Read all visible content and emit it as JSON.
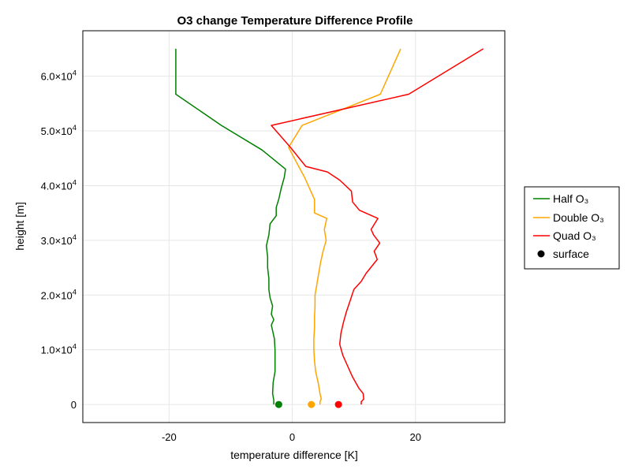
{
  "chart_data": {
    "type": "line",
    "title": "O3 change Temperature Difference Profile",
    "xlabel": "temperature difference [K]",
    "ylabel": "height [m]",
    "xlim": [
      -34,
      34.5
    ],
    "ylim": [
      -3300,
      68300
    ],
    "x_ticks": [
      -20,
      0,
      20
    ],
    "x_tick_labels": [
      "-20",
      "0",
      "20"
    ],
    "y_ticks": [
      0,
      10000,
      20000,
      30000,
      40000,
      50000,
      60000
    ],
    "y_tick_labels": [
      {
        "mantissa": "0",
        "exponent": ""
      },
      {
        "mantissa": "1.0×10",
        "exponent": "4"
      },
      {
        "mantissa": "2.0×10",
        "exponent": "4"
      },
      {
        "mantissa": "3.0×10",
        "exponent": "4"
      },
      {
        "mantissa": "4.0×10",
        "exponent": "4"
      },
      {
        "mantissa": "5.0×10",
        "exponent": "4"
      },
      {
        "mantissa": "6.0×10",
        "exponent": "4"
      }
    ],
    "grid": true,
    "legend_position": "right",
    "series": [
      {
        "name": "Half O₃",
        "color": "#008000",
        "points": [
          [
            -3.0,
            0
          ],
          [
            -3.0,
            800
          ],
          [
            -3.2,
            2000
          ],
          [
            -3.1,
            4000
          ],
          [
            -2.8,
            6000
          ],
          [
            -2.8,
            8000
          ],
          [
            -2.8,
            10000
          ],
          [
            -2.9,
            12000
          ],
          [
            -3.2,
            13500
          ],
          [
            -3.4,
            14500
          ],
          [
            -3.0,
            15500
          ],
          [
            -3.4,
            16500
          ],
          [
            -3.2,
            18000
          ],
          [
            -3.6,
            19500
          ],
          [
            -3.8,
            21000
          ],
          [
            -3.8,
            23000
          ],
          [
            -4.0,
            25000
          ],
          [
            -4.0,
            27000
          ],
          [
            -4.2,
            29000
          ],
          [
            -3.8,
            31000
          ],
          [
            -3.6,
            33000
          ],
          [
            -2.6,
            34500
          ],
          [
            -2.6,
            36000
          ],
          [
            -2.2,
            37500
          ],
          [
            -1.8,
            39500
          ],
          [
            -1.3,
            41500
          ],
          [
            -1.1,
            43000
          ],
          [
            -4.9,
            46500
          ],
          [
            -11.5,
            51000
          ],
          [
            -18.9,
            56700
          ],
          [
            -18.9,
            65000
          ]
        ]
      },
      {
        "name": "Double O₃",
        "color": "#ffa500",
        "points": [
          [
            4.5,
            0
          ],
          [
            4.5,
            500
          ],
          [
            4.7,
            1000
          ],
          [
            4.5,
            2000
          ],
          [
            4.2,
            4000
          ],
          [
            3.8,
            6000
          ],
          [
            3.6,
            8000
          ],
          [
            3.5,
            10000
          ],
          [
            3.5,
            12000
          ],
          [
            3.6,
            14000
          ],
          [
            3.6,
            16000
          ],
          [
            3.7,
            18000
          ],
          [
            3.7,
            20000
          ],
          [
            4.0,
            22000
          ],
          [
            4.3,
            24000
          ],
          [
            4.6,
            26000
          ],
          [
            5.0,
            28000
          ],
          [
            5.5,
            30000
          ],
          [
            5.2,
            32000
          ],
          [
            5.6,
            34000
          ],
          [
            3.6,
            35000
          ],
          [
            3.6,
            37500
          ],
          [
            2.8,
            39500
          ],
          [
            2.0,
            41500
          ],
          [
            0.8,
            44000
          ],
          [
            -0.6,
            47000
          ],
          [
            1.6,
            51000
          ],
          [
            14.3,
            56700
          ],
          [
            17.6,
            65000
          ]
        ]
      },
      {
        "name": "Quad O₃",
        "color": "#ff0000",
        "points": [
          [
            11.2,
            0
          ],
          [
            11.2,
            500
          ],
          [
            11.6,
            1000
          ],
          [
            11.5,
            2000
          ],
          [
            10.8,
            3000
          ],
          [
            9.8,
            5000
          ],
          [
            9.0,
            7000
          ],
          [
            8.2,
            9000
          ],
          [
            7.7,
            11000
          ],
          [
            7.9,
            13000
          ],
          [
            8.3,
            15000
          ],
          [
            8.8,
            17000
          ],
          [
            9.4,
            19000
          ],
          [
            10.0,
            21000
          ],
          [
            11.2,
            22500
          ],
          [
            12.0,
            24000
          ],
          [
            13.8,
            26500
          ],
          [
            13.3,
            28000
          ],
          [
            14.2,
            29500
          ],
          [
            13.2,
            31000
          ],
          [
            12.8,
            32000
          ],
          [
            13.9,
            34000
          ],
          [
            10.9,
            35500
          ],
          [
            9.8,
            37000
          ],
          [
            9.6,
            39000
          ],
          [
            7.7,
            41000
          ],
          [
            5.7,
            42500
          ],
          [
            2.2,
            43500
          ],
          [
            -0.3,
            47000
          ],
          [
            -3.4,
            51000
          ],
          [
            18.9,
            56700
          ],
          [
            31.0,
            65000
          ]
        ]
      }
    ],
    "scatter": {
      "name": "surface",
      "marker_color": "#000000",
      "points": [
        {
          "x": -2.2,
          "y": 0,
          "color": "#008000"
        },
        {
          "x": 3.1,
          "y": 0,
          "color": "#ffa500"
        },
        {
          "x": 7.5,
          "y": 0,
          "color": "#ff0000"
        }
      ]
    }
  }
}
